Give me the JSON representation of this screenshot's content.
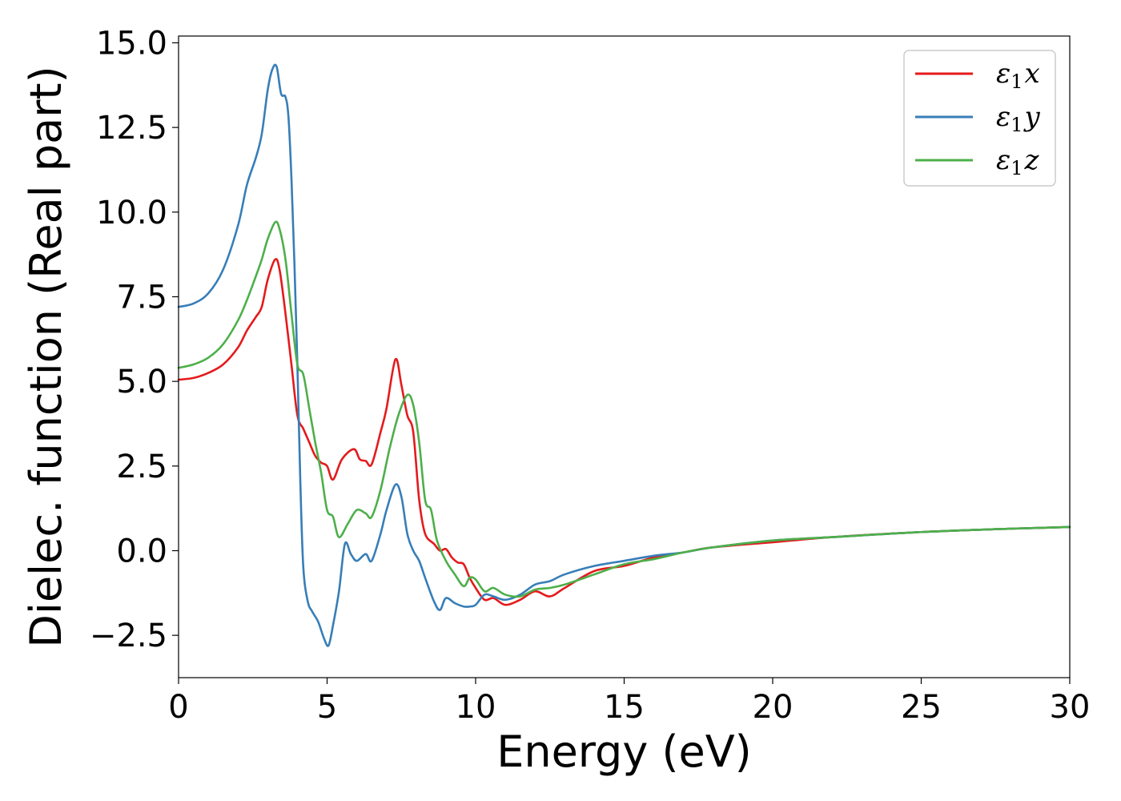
{
  "chart_data": {
    "type": "line",
    "title": "",
    "xlabel": "Energy (eV)",
    "ylabel": "Dielec. function (Real part)",
    "xlim": [
      0,
      30
    ],
    "ylim": [
      -3.75,
      15.2
    ],
    "xticks": [
      0,
      5,
      10,
      15,
      20,
      25,
      30
    ],
    "xtick_labels": [
      "0",
      "5",
      "10",
      "15",
      "20",
      "25",
      "30"
    ],
    "yticks": [
      -2.5,
      0.0,
      2.5,
      5.0,
      7.5,
      10.0,
      12.5,
      15.0
    ],
    "ytick_labels": [
      "−2.5",
      "0.0",
      "2.5",
      "5.0",
      "7.5",
      "10.0",
      "12.5",
      "15.0"
    ],
    "grid": false,
    "legend_position": "top-right",
    "series": [
      {
        "name": "ε1x",
        "legend_base": "ε",
        "legend_sub": "1",
        "legend_var": "x",
        "color": "#e41a1c",
        "x": [
          0,
          0.5,
          1,
          1.5,
          2,
          2.3,
          2.6,
          2.8,
          3.0,
          3.25,
          3.4,
          3.6,
          3.8,
          4.0,
          4.2,
          4.4,
          4.6,
          4.8,
          5.0,
          5.2,
          5.5,
          5.9,
          6.1,
          6.3,
          6.5,
          6.8,
          7.0,
          7.3,
          7.5,
          7.7,
          7.9,
          8.1,
          8.3,
          8.6,
          8.8,
          9.0,
          9.2,
          9.4,
          9.6,
          9.8,
          10.0,
          10.3,
          10.6,
          11.0,
          11.5,
          12.0,
          12.5,
          13.0,
          14.0,
          15.0,
          16.0,
          17.0,
          18.0,
          20.0,
          22.0,
          25.0,
          28.0,
          30.0
        ],
        "y": [
          5.05,
          5.1,
          5.25,
          5.5,
          6.0,
          6.5,
          6.9,
          7.2,
          8.0,
          8.6,
          8.3,
          7.0,
          5.5,
          4.0,
          3.6,
          3.2,
          2.8,
          2.6,
          2.5,
          2.1,
          2.7,
          3.0,
          2.7,
          2.65,
          2.55,
          3.5,
          4.2,
          5.65,
          4.9,
          4.0,
          3.5,
          1.5,
          0.5,
          0.2,
          0.0,
          0.05,
          -0.2,
          -0.35,
          -0.4,
          -0.8,
          -1.1,
          -1.45,
          -1.4,
          -1.6,
          -1.45,
          -1.2,
          -1.35,
          -1.1,
          -0.6,
          -0.45,
          -0.2,
          -0.05,
          0.1,
          0.25,
          0.4,
          0.55,
          0.65,
          0.7
        ]
      },
      {
        "name": "ε1y",
        "legend_base": "ε",
        "legend_sub": "1",
        "legend_var": "y",
        "color": "#377eb8",
        "x": [
          0,
          0.5,
          1,
          1.5,
          2,
          2.3,
          2.6,
          2.8,
          3.0,
          3.15,
          3.3,
          3.45,
          3.6,
          3.7,
          3.8,
          3.9,
          4.0,
          4.1,
          4.2,
          4.35,
          4.5,
          4.7,
          4.9,
          5.05,
          5.2,
          5.4,
          5.6,
          5.8,
          6.0,
          6.3,
          6.5,
          6.8,
          7.0,
          7.3,
          7.5,
          7.7,
          7.9,
          8.1,
          8.3,
          8.6,
          8.8,
          9.0,
          9.3,
          9.6,
          9.8,
          10.0,
          10.3,
          10.6,
          11.0,
          11.5,
          12.0,
          12.5,
          13.0,
          14.0,
          15.0,
          16.0,
          17.0,
          18.0,
          20.0,
          22.0,
          25.0,
          28.0,
          30.0
        ],
        "y": [
          7.2,
          7.3,
          7.6,
          8.3,
          9.6,
          10.8,
          11.6,
          12.3,
          13.6,
          14.2,
          14.3,
          13.5,
          13.4,
          12.8,
          11.0,
          8.5,
          5.5,
          2.0,
          -0.5,
          -1.5,
          -1.8,
          -2.1,
          -2.6,
          -2.8,
          -2.2,
          -1.2,
          0.2,
          -0.1,
          -0.3,
          -0.1,
          -0.3,
          0.5,
          1.2,
          1.95,
          1.6,
          0.5,
          0.0,
          -0.3,
          -0.8,
          -1.5,
          -1.75,
          -1.4,
          -1.55,
          -1.65,
          -1.65,
          -1.6,
          -1.3,
          -1.35,
          -1.45,
          -1.3,
          -1.0,
          -0.9,
          -0.7,
          -0.45,
          -0.3,
          -0.15,
          -0.05,
          0.1,
          0.3,
          0.4,
          0.55,
          0.65,
          0.7
        ]
      },
      {
        "name": "ε1z",
        "legend_base": "ε",
        "legend_sub": "1",
        "legend_var": "z",
        "color": "#4daf4a",
        "x": [
          0,
          0.5,
          1,
          1.5,
          2,
          2.3,
          2.6,
          2.8,
          3.0,
          3.25,
          3.4,
          3.6,
          3.8,
          4.0,
          4.2,
          4.4,
          4.6,
          4.8,
          5.0,
          5.2,
          5.4,
          5.7,
          6.0,
          6.3,
          6.5,
          6.8,
          7.1,
          7.4,
          7.7,
          7.9,
          8.1,
          8.3,
          8.5,
          8.7,
          9.0,
          9.3,
          9.6,
          9.8,
          10.0,
          10.3,
          10.6,
          11.0,
          11.5,
          12.0,
          12.5,
          13.0,
          14.0,
          15.0,
          16.0,
          17.0,
          18.0,
          20.0,
          22.0,
          25.0,
          28.0,
          30.0
        ],
        "y": [
          5.4,
          5.5,
          5.7,
          6.1,
          6.8,
          7.4,
          8.1,
          8.6,
          9.2,
          9.7,
          9.5,
          8.6,
          7.0,
          5.5,
          5.2,
          4.2,
          3.2,
          2.3,
          1.2,
          1.0,
          0.4,
          0.8,
          1.2,
          1.1,
          1.0,
          1.8,
          3.0,
          4.0,
          4.6,
          4.3,
          3.2,
          1.5,
          1.2,
          0.3,
          -0.3,
          -0.7,
          -1.05,
          -0.8,
          -0.85,
          -1.2,
          -1.1,
          -1.3,
          -1.35,
          -1.15,
          -1.1,
          -1.0,
          -0.7,
          -0.4,
          -0.25,
          -0.05,
          0.1,
          0.3,
          0.4,
          0.55,
          0.65,
          0.7
        ]
      }
    ]
  }
}
